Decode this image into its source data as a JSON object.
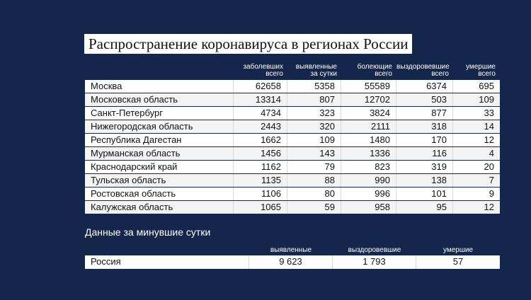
{
  "title": "Распространение коронавируса в регионах России",
  "table": {
    "headers": [
      [
        "заболевших",
        "всего"
      ],
      [
        "выявленные",
        "за сутки"
      ],
      [
        "болеющие",
        "всего"
      ],
      [
        "выздоровевшие",
        "всего"
      ],
      [
        "умершие",
        "всего"
      ]
    ],
    "rows": [
      [
        "Москва",
        62658,
        5358,
        55589,
        6374,
        695
      ],
      [
        "Московская область",
        13314,
        807,
        12702,
        503,
        109
      ],
      [
        "Санкт-Петербург",
        4734,
        323,
        3824,
        877,
        33
      ],
      [
        "Нижегородская область",
        2443,
        320,
        2111,
        318,
        14
      ],
      [
        "Республика Дагестан",
        1662,
        109,
        1480,
        170,
        12
      ],
      [
        "Мурманская область",
        1456,
        143,
        1336,
        116,
        4
      ],
      [
        "Краснодарский край",
        1162,
        79,
        823,
        319,
        20
      ],
      [
        "Тульская область",
        1135,
        88,
        990,
        138,
        7
      ],
      [
        "Ростовская область",
        1106,
        80,
        996,
        101,
        9
      ],
      [
        "Калужская область",
        1065,
        59,
        958,
        95,
        12
      ]
    ]
  },
  "summary": {
    "title": "Данные за минувшие сутки",
    "headers": [
      "выявленные",
      "выздоровевшие",
      "умершие"
    ],
    "rows": [
      [
        "Россия",
        "9 623",
        "1 793",
        "57"
      ]
    ]
  }
}
